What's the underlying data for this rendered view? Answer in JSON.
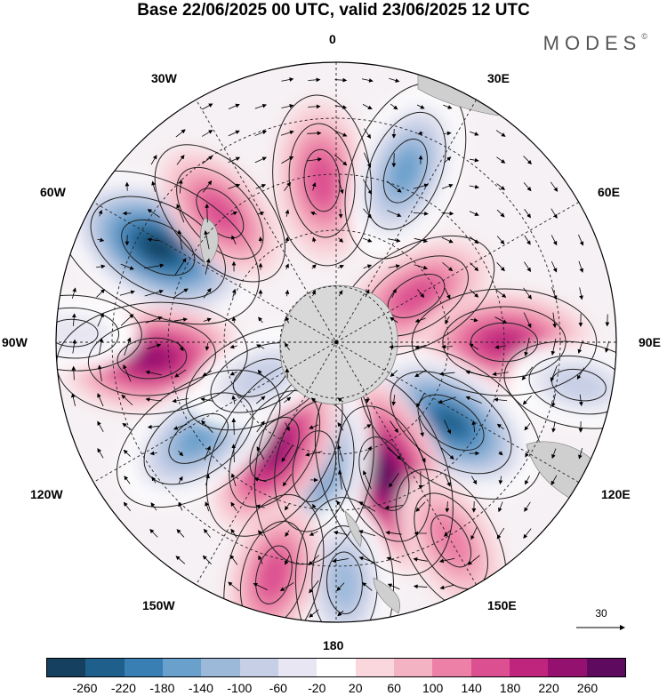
{
  "title": "Base 22/06/2025 00 UTC, valid 23/06/2025 12 UTC",
  "brand": "MODES",
  "brand_mark": "©",
  "longitude_labels": {
    "top": "0",
    "bottom": "180",
    "left": "90W",
    "right": "90E",
    "w30": "30W",
    "e30": "30E",
    "w60": "60W",
    "e60": "60E",
    "w120": "120W",
    "e120": "120E",
    "w150": "150W",
    "e150": "150E"
  },
  "vector_reference": "30",
  "colorbar": {
    "ticks": [
      "-260",
      "-220",
      "-180",
      "-140",
      "-100",
      "-60",
      "-20",
      "20",
      "60",
      "100",
      "140",
      "180",
      "220",
      "260"
    ],
    "colors": [
      "#16405f",
      "#1f5f8b",
      "#3a7fb4",
      "#6aa0cc",
      "#9db9da",
      "#c7cfe6",
      "#e7e6f2",
      "#ffffff",
      "#f9d7dd",
      "#f4b3c3",
      "#ec80a6",
      "#dc4f90",
      "#c0257e",
      "#95116f",
      "#5e0a5e"
    ]
  },
  "anomaly_cells": [
    {
      "lon_deg": -62,
      "radius": 0.72,
      "value": -260
    },
    {
      "lon_deg": -95,
      "radius": 0.66,
      "value": 180
    },
    {
      "lon_deg": -42,
      "radius": 0.62,
      "value": 100
    },
    {
      "lon_deg": -5,
      "radius": 0.58,
      "value": 120
    },
    {
      "lon_deg": 22,
      "radius": 0.66,
      "value": -160
    },
    {
      "lon_deg": 60,
      "radius": 0.33,
      "value": 120
    },
    {
      "lon_deg": 90,
      "radius": 0.6,
      "value": 160
    },
    {
      "lon_deg": 125,
      "radius": 0.5,
      "value": -220
    },
    {
      "lon_deg": 160,
      "radius": 0.5,
      "value": 240
    },
    {
      "lon_deg": -170,
      "radius": 0.45,
      "value": -200
    },
    {
      "lon_deg": -150,
      "radius": 0.44,
      "value": 180
    },
    {
      "lon_deg": -125,
      "radius": 0.6,
      "value": -160
    },
    {
      "lon_deg": -115,
      "radius": 0.3,
      "value": -80
    },
    {
      "lon_deg": 178,
      "radius": 0.86,
      "value": -120
    },
    {
      "lon_deg": -165,
      "radius": 0.86,
      "value": 100
    },
    {
      "lon_deg": 150,
      "radius": 0.82,
      "value": 80
    },
    {
      "lon_deg": 100,
      "radius": 0.88,
      "value": -60
    },
    {
      "lon_deg": -88,
      "radius": 0.94,
      "value": -20
    }
  ]
}
